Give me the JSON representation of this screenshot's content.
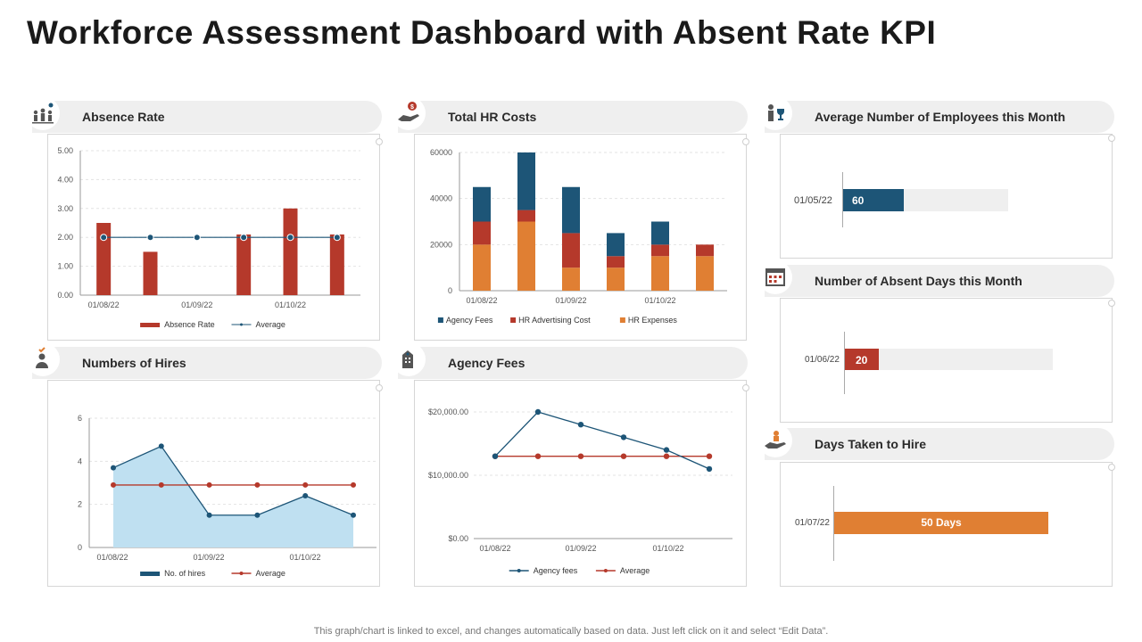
{
  "title": "Workforce Assessment Dashboard with Absent Rate KPI",
  "footer": "This graph/chart is linked to excel,  and changes automatically based on data. Just left click on it and select “Edit Data”.",
  "colors": {
    "red": "#b5392b",
    "blue": "#1d5577",
    "orange": "#e07f33",
    "lightblue": "#bfe0f1",
    "pill": "#efefef"
  },
  "sections": {
    "absence_rate": "Absence Rate",
    "total_hr_costs": "Total HR Costs",
    "avg_employees": "Average Number of Employees this Month",
    "numbers_of_hires": "Numbers of Hires",
    "agency_fees": "Agency Fees",
    "absent_days": "Number of Absent Days this Month",
    "days_to_hire": "Days Taken to Hire"
  },
  "kpis": {
    "avg_employees": {
      "date": "01/05/22",
      "label": "60",
      "value": 60
    },
    "absent_days": {
      "date": "01/06/22",
      "label": "20",
      "value": 20
    },
    "days_to_hire": {
      "date": "01/07/22",
      "label": "50 Days",
      "value": 50
    }
  },
  "chart_data": [
    {
      "id": "absence",
      "type": "bar",
      "categories": [
        "",
        "",
        "",
        "",
        "",
        ""
      ],
      "x_tick_labels": [
        "01/08/22",
        "01/09/22",
        "01/10/22"
      ],
      "y_tick_labels": [
        "0.00",
        "1.00",
        "2.00",
        "3.00",
        "4.00",
        "5.00"
      ],
      "ylim": [
        0,
        5
      ],
      "series": [
        {
          "name": "Absence Rate",
          "type": "bar",
          "values": [
            2.5,
            1.5,
            0,
            2.1,
            3.0,
            2.1
          ]
        },
        {
          "name": "Average",
          "type": "line",
          "values": [
            2,
            2,
            2,
            2,
            2,
            2
          ]
        }
      ]
    },
    {
      "id": "hrcosts",
      "type": "bar",
      "stacked": true,
      "categories": [
        "",
        "",
        "",
        "",
        "",
        ""
      ],
      "x_tick_labels": [
        "01/08/22",
        "01/09/22",
        "01/10/22"
      ],
      "y_tick_labels": [
        "0",
        "20000",
        "40000",
        "60000"
      ],
      "ylim": [
        0,
        60000
      ],
      "series": [
        {
          "name": "HR Expenses",
          "values": [
            20000,
            30000,
            10000,
            10000,
            15000,
            15000
          ]
        },
        {
          "name": "HR Advertising Cost",
          "values": [
            10000,
            5000,
            15000,
            5000,
            5000,
            5000
          ]
        },
        {
          "name": "Agency Fees",
          "values": [
            15000,
            25000,
            20000,
            10000,
            10000,
            0
          ]
        }
      ],
      "legend_order": [
        "Agency Fees",
        "HR Advertising Cost",
        "HR Expenses"
      ]
    },
    {
      "id": "hires",
      "type": "area",
      "categories": [
        "",
        "",
        "",
        "",
        "",
        ""
      ],
      "x_tick_labels": [
        "01/08/22",
        "01/09/22",
        "01/10/22"
      ],
      "y_tick_labels": [
        "0",
        "2",
        "4",
        "6"
      ],
      "ylim": [
        0,
        6
      ],
      "series": [
        {
          "name": "No. of hires",
          "values": [
            3.7,
            4.7,
            1.5,
            1.5,
            2.4,
            1.5
          ]
        },
        {
          "name": "Average",
          "values": [
            2.9,
            2.9,
            2.9,
            2.9,
            2.9,
            2.9
          ]
        }
      ]
    },
    {
      "id": "agencyfees",
      "type": "line",
      "categories": [
        "",
        "",
        "",
        "",
        "",
        ""
      ],
      "x_tick_labels": [
        "01/08/22",
        "01/09/22",
        "01/10/22"
      ],
      "y_tick_labels": [
        "$0.00",
        "$10,000.00",
        "$20,000.00"
      ],
      "ylim": [
        0,
        20000
      ],
      "series": [
        {
          "name": "Agency fees",
          "values": [
            13000,
            20000,
            18000,
            16000,
            14000,
            11000
          ]
        },
        {
          "name": "Average",
          "values": [
            13000,
            13000,
            13000,
            13000,
            13000,
            13000
          ]
        }
      ]
    }
  ]
}
